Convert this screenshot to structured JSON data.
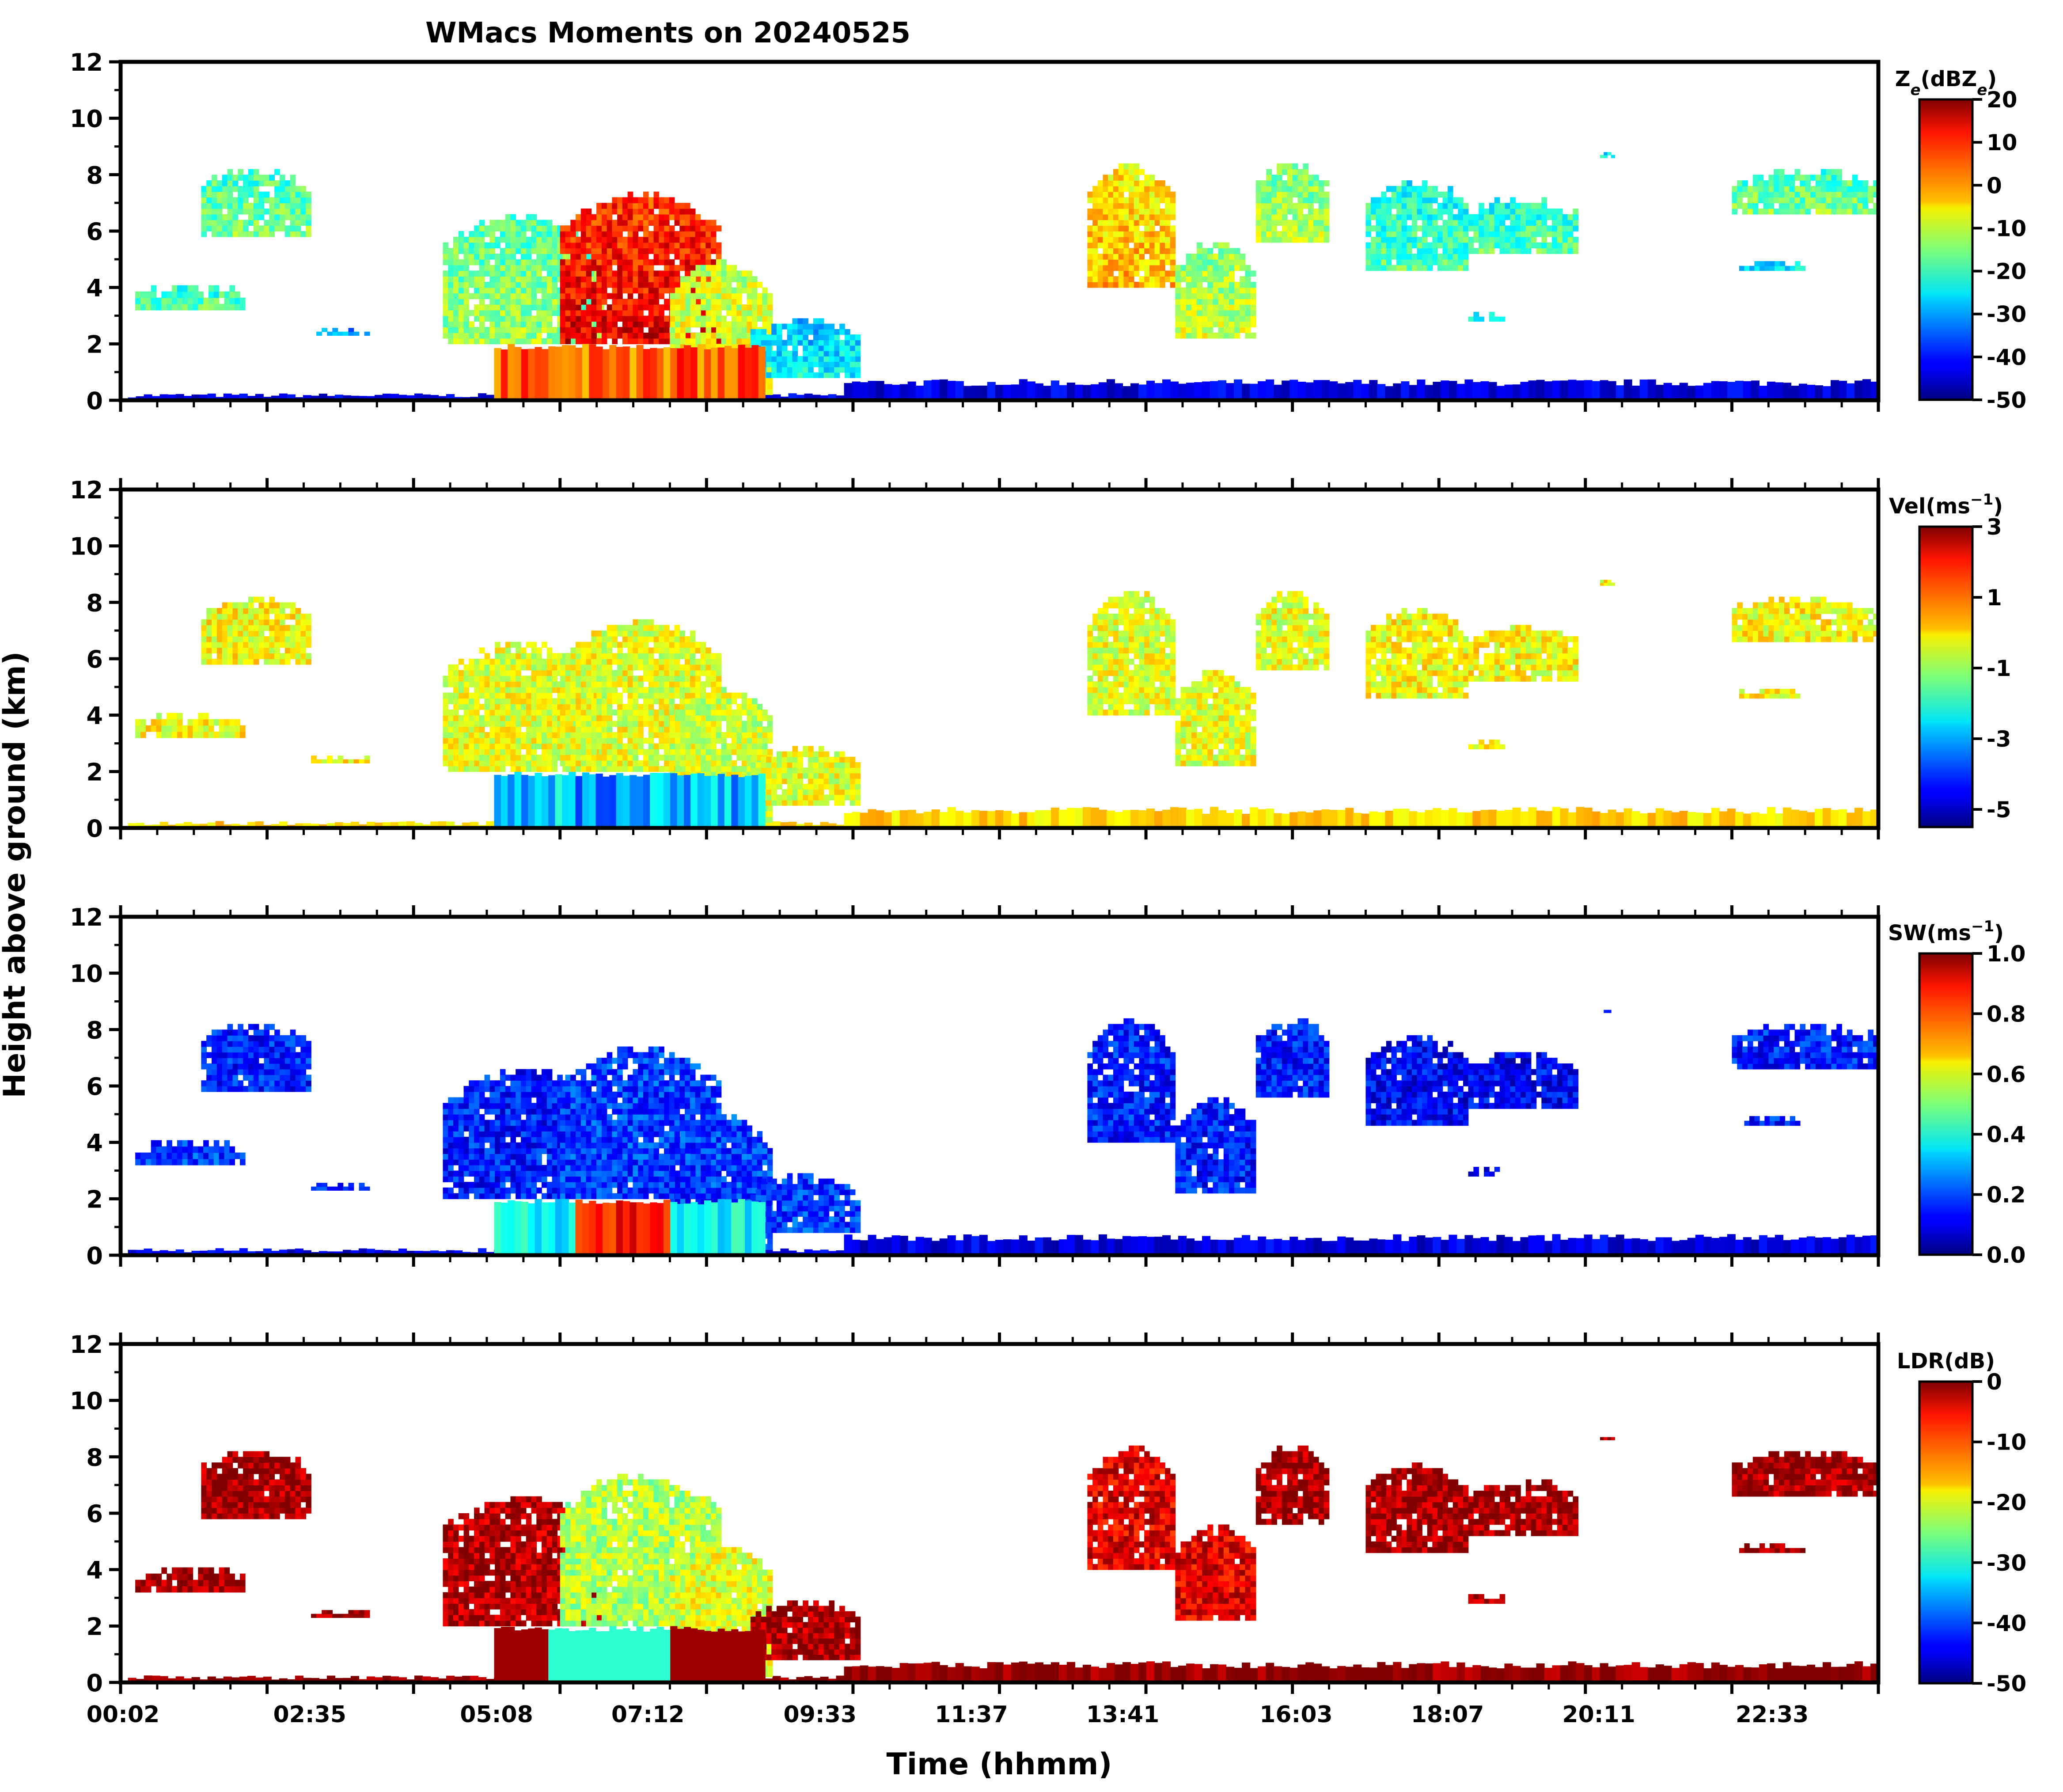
{
  "title": "WMacs Moments on 20240525",
  "xlabel": "Time (hhmm)",
  "ylabel": "Height above ground (km)",
  "chart_data": {
    "type": "heatmap",
    "title": "WMacs Moments on 20240525",
    "xlabel": "Time (hhmm)",
    "ylabel": "Height above ground (km)",
    "x_tick_labels": [
      "00:02",
      "02:35",
      "05:08",
      "07:12",
      "09:33",
      "11:37",
      "13:41",
      "16:03",
      "18:07",
      "20:11",
      "22:33"
    ],
    "x_tick_hours": [
      0.033,
      2.583,
      5.133,
      7.2,
      9.55,
      11.617,
      13.683,
      16.05,
      18.117,
      20.183,
      22.55
    ],
    "xlim_hours": [
      0.0,
      24.0
    ],
    "ylim_km": [
      0,
      12
    ],
    "y_ticks_km": [
      0,
      2,
      4,
      6,
      8,
      10,
      12
    ],
    "panels": [
      {
        "variable": "Z_e",
        "colorbar_label_main": "Z",
        "colorbar_label_sub": "e",
        "colorbar_label_mid": "(dBZ",
        "colorbar_label_sub2": "e",
        "colorbar_label_end": ")",
        "colorbar_range": [
          -50,
          20
        ],
        "colorbar_ticks": [
          "20",
          "10",
          "0",
          "-10",
          "-20",
          "-30",
          "-40",
          "-50"
        ],
        "colormap": "jet"
      },
      {
        "variable": "Vel",
        "colorbar_label_main": "Vel(ms",
        "colorbar_label_sup": "−1",
        "colorbar_label_end": ")",
        "colorbar_range": [
          -5.5,
          3
        ],
        "colorbar_ticks": [
          "3",
          "1",
          "-1",
          "-3",
          "-5"
        ],
        "colorbar_tick_values": [
          3,
          1,
          -1,
          -3,
          -5
        ],
        "colormap": "jet"
      },
      {
        "variable": "SW",
        "colorbar_label_main": "SW(ms",
        "colorbar_label_sup": "−1",
        "colorbar_label_end": ")",
        "colorbar_range": [
          0.0,
          1.0
        ],
        "colorbar_ticks": [
          "1.0",
          "0.8",
          "0.6",
          "0.4",
          "0.2",
          "0.0"
        ],
        "colormap": "jet"
      },
      {
        "variable": "LDR",
        "colorbar_label_main": "LDR(dB)",
        "colorbar_range": [
          -50,
          0
        ],
        "colorbar_ticks": [
          "0",
          "-10",
          "-20",
          "-30",
          "-40",
          "-50"
        ],
        "colormap": "jet"
      }
    ]
  }
}
